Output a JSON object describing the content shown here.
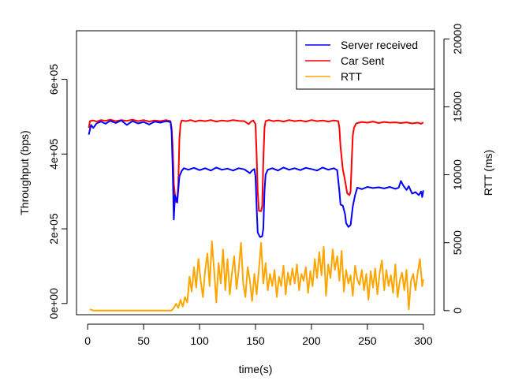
{
  "chart_data": {
    "type": "line",
    "title": "",
    "xlabel": "time(s)",
    "ylabel": "Throughput (bps)",
    "y2label": "RTT (ms)",
    "xlim": [
      -10,
      310
    ],
    "ylim": [
      -30000,
      730000
    ],
    "y2lim": [
      -300,
      20600
    ],
    "xticks": [
      0,
      50,
      100,
      150,
      200,
      250,
      300
    ],
    "xtick_labels": [
      "0",
      "50",
      "100",
      "150",
      "200",
      "250",
      "300"
    ],
    "yticks": [
      0,
      200000,
      400000,
      600000
    ],
    "ytick_labels": [
      "0e+00",
      "2e+05",
      "4e+05",
      "6e+05"
    ],
    "y2ticks": [
      0,
      5000,
      10000,
      15000,
      20000
    ],
    "y2tick_labels": [
      "0",
      "5000",
      "10000",
      "15000",
      "20000"
    ],
    "legend_position": "top-right",
    "series": [
      {
        "name": "Server received",
        "axis": "left",
        "color": "#0000ff",
        "points": [
          [
            1,
            452000
          ],
          [
            3,
            478000
          ],
          [
            5,
            470000
          ],
          [
            8,
            482000
          ],
          [
            12,
            487000
          ],
          [
            16,
            481000
          ],
          [
            20,
            489000
          ],
          [
            25,
            483000
          ],
          [
            30,
            490000
          ],
          [
            35,
            478000
          ],
          [
            40,
            488000
          ],
          [
            45,
            482000
          ],
          [
            50,
            486000
          ],
          [
            55,
            479000
          ],
          [
            60,
            487000
          ],
          [
            65,
            484000
          ],
          [
            70,
            488000
          ],
          [
            74,
            486000
          ],
          [
            75,
            460000
          ],
          [
            76,
            360000
          ],
          [
            77,
            225000
          ],
          [
            78,
            290000
          ],
          [
            80,
            270000
          ],
          [
            82,
            340000
          ],
          [
            84,
            355000
          ],
          [
            86,
            362000
          ],
          [
            90,
            358000
          ],
          [
            95,
            363000
          ],
          [
            100,
            357000
          ],
          [
            105,
            362000
          ],
          [
            110,
            356000
          ],
          [
            115,
            364000
          ],
          [
            120,
            358000
          ],
          [
            125,
            361000
          ],
          [
            130,
            356000
          ],
          [
            135,
            362000
          ],
          [
            140,
            359000
          ],
          [
            145,
            349000
          ],
          [
            147,
            356000
          ],
          [
            149,
            360000
          ],
          [
            150,
            340000
          ],
          [
            151,
            260000
          ],
          [
            152,
            190000
          ],
          [
            154,
            178000
          ],
          [
            156,
            180000
          ],
          [
            157,
            200000
          ],
          [
            158,
            300000
          ],
          [
            159,
            345000
          ],
          [
            161,
            358000
          ],
          [
            165,
            362000
          ],
          [
            170,
            356000
          ],
          [
            175,
            364000
          ],
          [
            180,
            358000
          ],
          [
            185,
            362000
          ],
          [
            190,
            357000
          ],
          [
            195,
            363000
          ],
          [
            200,
            360000
          ],
          [
            205,
            356000
          ],
          [
            210,
            364000
          ],
          [
            215,
            358000
          ],
          [
            220,
            362000
          ],
          [
            223,
            357000
          ],
          [
            225,
            300000
          ],
          [
            226,
            265000
          ],
          [
            228,
            262000
          ],
          [
            230,
            240000
          ],
          [
            231,
            215000
          ],
          [
            233,
            205000
          ],
          [
            235,
            210000
          ],
          [
            237,
            260000
          ],
          [
            239,
            290000
          ],
          [
            241,
            310000
          ],
          [
            245,
            306000
          ],
          [
            250,
            312000
          ],
          [
            255,
            309000
          ],
          [
            260,
            311000
          ],
          [
            265,
            308000
          ],
          [
            270,
            312000
          ],
          [
            275,
            307000
          ],
          [
            278,
            310000
          ],
          [
            280,
            328000
          ],
          [
            282,
            316000
          ],
          [
            285,
            304000
          ],
          [
            287,
            314000
          ],
          [
            290,
            294000
          ],
          [
            293,
            298000
          ],
          [
            296,
            290000
          ],
          [
            298,
            300000
          ],
          [
            299,
            285000
          ],
          [
            300,
            303000
          ]
        ]
      },
      {
        "name": "Car Sent",
        "axis": "left",
        "color": "#ff0000",
        "points": [
          [
            1,
            470000
          ],
          [
            2,
            488000
          ],
          [
            5,
            490000
          ],
          [
            8,
            487000
          ],
          [
            12,
            491000
          ],
          [
            16,
            489000
          ],
          [
            20,
            492000
          ],
          [
            25,
            488000
          ],
          [
            30,
            491000
          ],
          [
            35,
            489000
          ],
          [
            40,
            492000
          ],
          [
            45,
            488000
          ],
          [
            50,
            491000
          ],
          [
            55,
            487000
          ],
          [
            60,
            490000
          ],
          [
            65,
            488000
          ],
          [
            70,
            491000
          ],
          [
            74,
            488000
          ],
          [
            75,
            470000
          ],
          [
            76,
            420000
          ],
          [
            77,
            320000
          ],
          [
            78,
            290000
          ],
          [
            79,
            272000
          ],
          [
            80,
            275000
          ],
          [
            81,
            320000
          ],
          [
            82,
            440000
          ],
          [
            83,
            480000
          ],
          [
            84,
            490000
          ],
          [
            88,
            488000
          ],
          [
            92,
            491000
          ],
          [
            96,
            487000
          ],
          [
            100,
            490000
          ],
          [
            105,
            488000
          ],
          [
            110,
            491000
          ],
          [
            115,
            487000
          ],
          [
            120,
            490000
          ],
          [
            125,
            488000
          ],
          [
            130,
            491000
          ],
          [
            135,
            489000
          ],
          [
            140,
            488000
          ],
          [
            144,
            480000
          ],
          [
            146,
            487000
          ],
          [
            148,
            490000
          ],
          [
            150,
            480000
          ],
          [
            151,
            400000
          ],
          [
            152,
            300000
          ],
          [
            153,
            248000
          ],
          [
            155,
            247000
          ],
          [
            156,
            260000
          ],
          [
            157,
            380000
          ],
          [
            158,
            470000
          ],
          [
            159,
            488000
          ],
          [
            162,
            491000
          ],
          [
            166,
            488000
          ],
          [
            170,
            490000
          ],
          [
            175,
            487000
          ],
          [
            180,
            491000
          ],
          [
            185,
            488000
          ],
          [
            190,
            490000
          ],
          [
            195,
            487000
          ],
          [
            200,
            491000
          ],
          [
            205,
            488000
          ],
          [
            210,
            490000
          ],
          [
            215,
            487000
          ],
          [
            220,
            490000
          ],
          [
            224,
            488000
          ],
          [
            225,
            470000
          ],
          [
            226,
            420000
          ],
          [
            228,
            360000
          ],
          [
            230,
            330000
          ],
          [
            232,
            295000
          ],
          [
            234,
            290000
          ],
          [
            235,
            300000
          ],
          [
            236,
            380000
          ],
          [
            237,
            450000
          ],
          [
            238,
            470000
          ],
          [
            240,
            482000
          ],
          [
            245,
            486000
          ],
          [
            250,
            484000
          ],
          [
            255,
            487000
          ],
          [
            260,
            483000
          ],
          [
            265,
            486000
          ],
          [
            270,
            484000
          ],
          [
            275,
            485000
          ],
          [
            280,
            483000
          ],
          [
            285,
            485000
          ],
          [
            290,
            482000
          ],
          [
            295,
            484000
          ],
          [
            298,
            481000
          ],
          [
            300,
            485000
          ]
        ]
      },
      {
        "name": "RTT",
        "axis": "right",
        "color": "#ffa500",
        "points": [
          [
            2,
            100
          ],
          [
            5,
            0
          ],
          [
            10,
            0
          ],
          [
            20,
            0
          ],
          [
            30,
            0
          ],
          [
            40,
            0
          ],
          [
            50,
            0
          ],
          [
            60,
            0
          ],
          [
            70,
            0
          ],
          [
            75,
            0
          ],
          [
            77,
            200
          ],
          [
            79,
            500
          ],
          [
            81,
            200
          ],
          [
            83,
            800
          ],
          [
            85,
            300
          ],
          [
            87,
            1000
          ],
          [
            89,
            600
          ],
          [
            91,
            2500
          ],
          [
            93,
            1400
          ],
          [
            95,
            3200
          ],
          [
            97,
            1700
          ],
          [
            99,
            3800
          ],
          [
            101,
            2200
          ],
          [
            103,
            1000
          ],
          [
            105,
            3000
          ],
          [
            107,
            4200
          ],
          [
            109,
            1800
          ],
          [
            111,
            5100
          ],
          [
            113,
            3000
          ],
          [
            115,
            600
          ],
          [
            117,
            3500
          ],
          [
            119,
            2000
          ],
          [
            121,
            4500
          ],
          [
            123,
            1500
          ],
          [
            125,
            3800
          ],
          [
            127,
            1200
          ],
          [
            129,
            2800
          ],
          [
            131,
            4000
          ],
          [
            133,
            1600
          ],
          [
            135,
            3000
          ],
          [
            137,
            5000
          ],
          [
            139,
            2000
          ],
          [
            141,
            1000
          ],
          [
            143,
            3200
          ],
          [
            145,
            2200
          ],
          [
            147,
            700
          ],
          [
            149,
            2700
          ],
          [
            151,
            1200
          ],
          [
            153,
            3000
          ],
          [
            155,
            5000
          ],
          [
            157,
            2000
          ],
          [
            159,
            3500
          ],
          [
            161,
            1500
          ],
          [
            163,
            2700
          ],
          [
            165,
            1800
          ],
          [
            167,
            3000
          ],
          [
            169,
            1000
          ],
          [
            171,
            2500
          ],
          [
            173,
            1800
          ],
          [
            175,
            3300
          ],
          [
            177,
            1200
          ],
          [
            179,
            2800
          ],
          [
            181,
            1900
          ],
          [
            183,
            3100
          ],
          [
            185,
            2000
          ],
          [
            187,
            3400
          ],
          [
            189,
            1500
          ],
          [
            191,
            2700
          ],
          [
            193,
            2200
          ],
          [
            195,
            3200
          ],
          [
            197,
            1300
          ],
          [
            199,
            2900
          ],
          [
            201,
            1800
          ],
          [
            203,
            3800
          ],
          [
            205,
            2400
          ],
          [
            207,
            4300
          ],
          [
            209,
            2600
          ],
          [
            211,
            4700
          ],
          [
            213,
            1100
          ],
          [
            215,
            3400
          ],
          [
            217,
            2400
          ],
          [
            219,
            4500
          ],
          [
            221,
            3000
          ],
          [
            223,
            4000
          ],
          [
            225,
            2200
          ],
          [
            227,
            4400
          ],
          [
            229,
            1400
          ],
          [
            231,
            3000
          ],
          [
            233,
            2000
          ],
          [
            235,
            2600
          ],
          [
            237,
            1100
          ],
          [
            239,
            3300
          ],
          [
            241,
            2300
          ],
          [
            243,
            1900
          ],
          [
            245,
            3000
          ],
          [
            247,
            1500
          ],
          [
            249,
            2700
          ],
          [
            251,
            800
          ],
          [
            253,
            2900
          ],
          [
            255,
            1700
          ],
          [
            257,
            3100
          ],
          [
            259,
            1200
          ],
          [
            261,
            2800
          ],
          [
            263,
            3700
          ],
          [
            265,
            1500
          ],
          [
            267,
            3000
          ],
          [
            269,
            1800
          ],
          [
            271,
            2600
          ],
          [
            273,
            1300
          ],
          [
            275,
            3400
          ],
          [
            277,
            1000
          ],
          [
            279,
            2200
          ],
          [
            281,
            2800
          ],
          [
            283,
            1500
          ],
          [
            285,
            3000
          ],
          [
            287,
            100
          ],
          [
            289,
            2200
          ],
          [
            291,
            2700
          ],
          [
            293,
            1500
          ],
          [
            295,
            2800
          ],
          [
            297,
            3800
          ],
          [
            299,
            1800
          ],
          [
            300,
            2300
          ]
        ]
      }
    ]
  }
}
